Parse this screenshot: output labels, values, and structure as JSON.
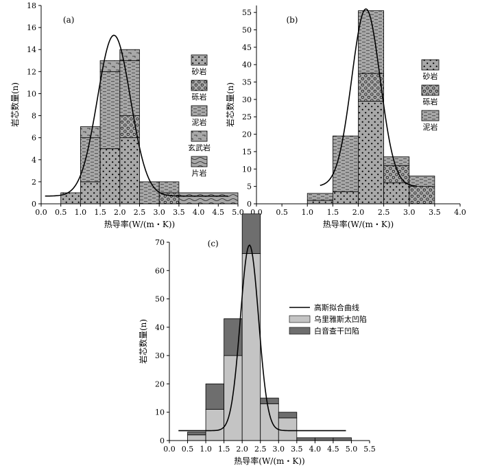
{
  "chart_data": [
    {
      "type": "bar",
      "panel": "(a)",
      "xlabel": "热导率(W/(m・K))",
      "ylabel": "岩芯数量(n)",
      "xlim": [
        0,
        5
      ],
      "ylim": [
        0,
        18
      ],
      "xticks": [
        "0.0",
        "0.5",
        "1.0",
        "1.5",
        "2.0",
        "2.5",
        "3.0",
        "3.5",
        "4.0",
        "4.5",
        "5.0"
      ],
      "yticks": [
        "0",
        "2",
        "4",
        "6",
        "8",
        "10",
        "12",
        "14",
        "16",
        "18"
      ],
      "bins": [
        [
          0.5,
          1.0
        ],
        [
          1.0,
          1.5
        ],
        [
          1.5,
          2.0
        ],
        [
          2.0,
          2.5
        ],
        [
          2.5,
          3.0
        ],
        [
          3.0,
          3.5
        ],
        [
          3.5,
          5.0
        ]
      ],
      "series": [
        {
          "name": "砂岩",
          "pattern": "sandstone",
          "values": [
            1,
            2,
            5,
            6,
            0,
            0,
            0
          ]
        },
        {
          "name": "砾岩",
          "pattern": "conglomerate",
          "values": [
            0,
            0,
            0,
            2,
            0,
            1,
            0
          ]
        },
        {
          "name": "泥岩",
          "pattern": "mudstone",
          "values": [
            0,
            4,
            7,
            5,
            2,
            1,
            0
          ]
        },
        {
          "name": "玄武岩",
          "pattern": "basalt",
          "values": [
            0,
            1,
            1,
            1,
            0,
            0,
            0
          ]
        },
        {
          "name": "片岩",
          "pattern": "schist",
          "values": [
            0,
            0,
            0,
            0,
            0,
            0,
            1
          ]
        }
      ],
      "gauss": {
        "mu": 1.85,
        "sigma": 0.42,
        "amp": 14.6,
        "base": 0.7,
        "range": [
          0.1,
          4.75
        ]
      }
    },
    {
      "type": "bar",
      "panel": "(b)",
      "xlabel": "热导率(W/(m・K))",
      "ylabel": "岩芯数量(n)",
      "xlim": [
        0,
        4
      ],
      "ylim": [
        0,
        57
      ],
      "xticks": [
        "0.0",
        "0.5",
        "1.0",
        "1.5",
        "2.0",
        "2.5",
        "3.0",
        "3.5",
        "4.0"
      ],
      "yticks": [
        "0",
        "5",
        "10",
        "15",
        "20",
        "25",
        "30",
        "35",
        "40",
        "45",
        "50",
        "55"
      ],
      "bins": [
        [
          1.0,
          1.5
        ],
        [
          1.5,
          2.0
        ],
        [
          2.0,
          2.5
        ],
        [
          2.5,
          3.0
        ],
        [
          3.0,
          3.5
        ]
      ],
      "series": [
        {
          "name": "砂岩",
          "pattern": "sandstone",
          "values": [
            1,
            3.5,
            29.5,
            6,
            0
          ]
        },
        {
          "name": "砾岩",
          "pattern": "conglomerate",
          "values": [
            0,
            0,
            8,
            5,
            5
          ]
        },
        {
          "name": "泥岩",
          "pattern": "mudstone",
          "values": [
            2,
            16,
            18,
            2.5,
            3
          ]
        }
      ],
      "gauss": {
        "mu": 2.15,
        "sigma": 0.28,
        "amp": 51,
        "base": 5,
        "range": [
          1.25,
          3.15
        ]
      }
    },
    {
      "type": "bar",
      "panel": "(c)",
      "xlabel": "热导率(W/(m・K))",
      "ylabel": "岩芯数量(n)",
      "xlim": [
        0,
        5.5
      ],
      "ylim": [
        0,
        70
      ],
      "xticks": [
        "0.0",
        "0.5",
        "1.0",
        "1.5",
        "2.0",
        "2.5",
        "3.0",
        "3.5",
        "4.0",
        "4.5",
        "5.0",
        "5.5"
      ],
      "yticks": [
        "0",
        "10",
        "20",
        "30",
        "40",
        "50",
        "60",
        "70"
      ],
      "bins": [
        [
          0.5,
          1.0
        ],
        [
          1.0,
          1.5
        ],
        [
          1.5,
          2.0
        ],
        [
          2.0,
          2.5
        ],
        [
          2.5,
          3.0
        ],
        [
          3.0,
          3.5
        ],
        [
          3.5,
          4.0
        ],
        [
          4.0,
          4.5
        ],
        [
          4.5,
          5.0
        ]
      ],
      "series": [
        {
          "name": "乌里雅斯太凹陷",
          "color": "#c4c4c4",
          "values": [
            2,
            11,
            30,
            66,
            13,
            8,
            0,
            0,
            0
          ]
        },
        {
          "name": "白音查干凹陷",
          "color": "#6e6e6e",
          "values": [
            1,
            9,
            13,
            14,
            2,
            2,
            1,
            1,
            1
          ]
        }
      ],
      "curve_name": "高斯拟合曲线",
      "gauss": {
        "mu": 2.2,
        "sigma": 0.25,
        "amp": 65.5,
        "base": 3.5,
        "range": [
          0.25,
          4.85
        ]
      }
    }
  ]
}
